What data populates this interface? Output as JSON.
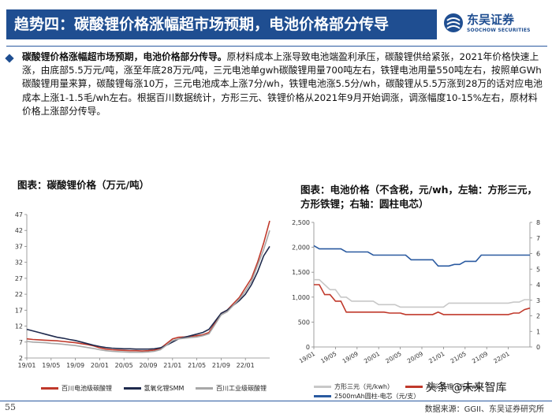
{
  "header": {
    "title": "趋势四：碳酸锂价格涨幅超市场预期，电池价格部分传导",
    "logo_cn": "东吴证券",
    "logo_en": "SOOCHOW SECURITIES",
    "brand_color": "#1f4e91"
  },
  "body": {
    "lead": "碳酸锂价格涨幅超市场预期，电池价格部分传导。",
    "text": "原材料成本上涨导致电池端盈利承压，碳酸锂供给紧张，2021年价格快速上涨，由底部5.5万元/吨，涨至年底28万元/吨，三元电池单gwh碳酸锂用量700吨左右，铁锂电池用量550吨左右，按照单GWh碳酸锂用量来算，碳酸锂每涨10万，三元电池成本上涨7分/wh，铁锂电池涨5.5分/wh，碳酸锂从5.5万涨到28万的话对应电池成本上涨1-1.5毛/wh左右。根据百川数据统计，方形三元、铁锂价格从2021年9月开始调涨，调涨幅度10-15%左右，原材料价格上涨部分传导。"
  },
  "chart_left": {
    "title": "图表：碳酸锂价格（万元/吨）",
    "legend": [
      "百川电池级碳酸锂",
      "氢氧化锂SMM",
      "百川工业级碳酸锂"
    ],
    "chart_data": {
      "type": "line",
      "title": "图表：碳酸锂价格（万元/吨）",
      "x_ticks": [
        "19/01",
        "19/05",
        "19/09",
        "20/01",
        "20/05",
        "20/09",
        "21/01",
        "21/05",
        "21/09",
        "22/01"
      ],
      "y_ticks": [
        "2",
        "7",
        "12",
        "17",
        "22",
        "27",
        "32",
        "37",
        "42",
        "47"
      ],
      "ylim": [
        2,
        47
      ],
      "series": [
        {
          "name": "百川电池级碳酸锂",
          "color": "#c0392b",
          "x": [
            0,
            1,
            2,
            3,
            4,
            5,
            6,
            7,
            8,
            9,
            10,
            11,
            12,
            13,
            14,
            15,
            16,
            17,
            18,
            19,
            20,
            21,
            22,
            23,
            24,
            25,
            26,
            27,
            28,
            29,
            30,
            31,
            32,
            33,
            34,
            35,
            36,
            37,
            38,
            39,
            40
          ],
          "values": [
            8,
            7.8,
            7.7,
            7.6,
            7.5,
            7.4,
            7.2,
            7,
            6.8,
            6.5,
            6.2,
            5.8,
            5.2,
            4.8,
            4.6,
            4.5,
            4.4,
            4.3,
            4.3,
            4.2,
            4.3,
            4.5,
            5,
            6.5,
            8,
            8.5,
            8.6,
            8.8,
            9,
            9.3,
            10,
            13,
            16,
            17,
            19,
            21,
            24,
            27,
            32,
            38,
            45
          ]
        },
        {
          "name": "氢氧化锂SMM",
          "color": "#1f2a4d",
          "x": [
            0,
            1,
            2,
            3,
            4,
            5,
            6,
            7,
            8,
            9,
            10,
            11,
            12,
            13,
            14,
            15,
            16,
            17,
            18,
            19,
            20,
            21,
            22,
            23,
            24,
            25,
            26,
            27,
            28,
            29,
            30,
            31,
            32,
            33,
            34,
            35,
            36,
            37,
            38,
            39,
            40
          ],
          "values": [
            11,
            10.5,
            10,
            9.5,
            9,
            8.5,
            8.2,
            7.8,
            7.5,
            7,
            6.5,
            6,
            5.6,
            5.3,
            5.1,
            5,
            4.9,
            4.9,
            4.8,
            4.8,
            4.8,
            4.9,
            5.2,
            6,
            7,
            8,
            8.5,
            9,
            9.5,
            10,
            11,
            13.5,
            16,
            17,
            18.5,
            20,
            22,
            25,
            29,
            34,
            37
          ]
        },
        {
          "name": "百川工业级碳酸锂",
          "color": "#a8a8a8",
          "x": [
            0,
            1,
            2,
            3,
            4,
            5,
            6,
            7,
            8,
            9,
            10,
            11,
            12,
            13,
            14,
            15,
            16,
            17,
            18,
            19,
            20,
            21,
            22,
            23,
            24,
            25,
            26,
            27,
            28,
            29,
            30,
            31,
            32,
            33,
            34,
            35,
            36,
            37,
            38,
            39,
            40
          ],
          "values": [
            7.2,
            7,
            6.9,
            6.8,
            6.6,
            6.5,
            6.3,
            6.1,
            5.9,
            5.6,
            5.3,
            5,
            4.6,
            4.3,
            4.1,
            4,
            3.9,
            3.8,
            3.8,
            3.8,
            3.9,
            4.1,
            4.6,
            6,
            7.5,
            8,
            8.2,
            8.4,
            8.6,
            9,
            9.6,
            12.5,
            15.5,
            16.5,
            18.5,
            20.5,
            23,
            26,
            31,
            36,
            42
          ]
        }
      ]
    }
  },
  "chart_right": {
    "title": "图表：电池价格（不含税，元/wh，左轴：方形三元，方形铁锂；右轴：圆柱电芯）",
    "legend": [
      "方形三元（元/kwh）",
      "方形-铁锂（元/kwh）",
      "2500mAh圆柱-电芯（元/支）"
    ],
    "chart_data": {
      "type": "line",
      "title": "图表：电池价格（不含税，元/wh，左轴：方形三元，方形铁锂；右轴：圆柱电芯）",
      "x_ticks": [
        "19/01",
        "19/05",
        "19/09",
        "20/01",
        "20/05",
        "20/09",
        "21/01",
        "21/05",
        "21/09",
        "22/01"
      ],
      "y_ticks_left": [
        "0",
        "500",
        "1,000",
        "1,500",
        "2,000",
        "2,500"
      ],
      "y_ticks_right": [
        "0",
        "1",
        "2",
        "3",
        "4",
        "5",
        "6",
        "7",
        "8"
      ],
      "ylim_left": [
        0,
        2500
      ],
      "ylim_right": [
        0,
        8
      ],
      "series": [
        {
          "name": "方形三元（元/kwh）",
          "color": "#c8c8c8",
          "axis": "left",
          "x": [
            0,
            1,
            2,
            3,
            4,
            5,
            6,
            7,
            8,
            9,
            10,
            11,
            12,
            13,
            14,
            15,
            16,
            17,
            18,
            19,
            20,
            21,
            22,
            23,
            24,
            25,
            26,
            27,
            28,
            29,
            30,
            31,
            32,
            33,
            34,
            35,
            36,
            37,
            38,
            39,
            40
          ],
          "values": [
            1350,
            1350,
            1250,
            1150,
            1150,
            1000,
            1000,
            920,
            920,
            920,
            920,
            920,
            850,
            850,
            850,
            850,
            800,
            800,
            800,
            800,
            800,
            800,
            800,
            800,
            800,
            880,
            880,
            880,
            880,
            880,
            880,
            880,
            880,
            880,
            880,
            880,
            880,
            900,
            900,
            950,
            950
          ]
        },
        {
          "name": "方形-铁锂（元/kwh）",
          "color": "#c0392b",
          "axis": "left",
          "x": [
            0,
            1,
            2,
            3,
            4,
            5,
            6,
            7,
            8,
            9,
            10,
            11,
            12,
            13,
            14,
            15,
            16,
            17,
            18,
            19,
            20,
            21,
            22,
            23,
            24,
            25,
            26,
            27,
            28,
            29,
            30,
            31,
            32,
            33,
            34,
            35,
            36,
            37,
            38,
            39,
            40
          ],
          "values": [
            1250,
            1250,
            1050,
            1050,
            920,
            920,
            700,
            700,
            700,
            700,
            700,
            700,
            700,
            700,
            680,
            680,
            680,
            650,
            650,
            650,
            650,
            650,
            650,
            700,
            650,
            650,
            650,
            650,
            650,
            650,
            650,
            650,
            650,
            650,
            650,
            650,
            650,
            680,
            680,
            750,
            780
          ]
        },
        {
          "name": "2500mAh圆柱-电芯（元/支）",
          "color": "#2a5aa0",
          "axis": "right",
          "x": [
            0,
            1,
            2,
            3,
            4,
            5,
            6,
            7,
            8,
            9,
            10,
            11,
            12,
            13,
            14,
            15,
            16,
            17,
            18,
            19,
            20,
            21,
            22,
            23,
            24,
            25,
            26,
            27,
            28,
            29,
            30,
            31,
            32,
            33,
            34,
            35,
            36,
            37,
            38,
            39,
            40
          ],
          "values": [
            6.5,
            6.3,
            6.3,
            6.3,
            6.3,
            6.3,
            6.1,
            6.1,
            6.1,
            6.1,
            6.1,
            5.9,
            5.9,
            5.9,
            5.9,
            5.9,
            5.9,
            5.9,
            5.6,
            5.6,
            5.6,
            5.6,
            5.6,
            5.2,
            5.2,
            5.2,
            5.3,
            5.3,
            5.5,
            5.5,
            5.5,
            5.9,
            5.9,
            5.9,
            5.9,
            5.9,
            5.9,
            5.9,
            5.9,
            5.9,
            5.9
          ]
        }
      ]
    }
  },
  "footer": {
    "page_number": "55",
    "source": "数据来源：GGII、东吴证券研究所",
    "watermark": "头条 @未来智库"
  }
}
